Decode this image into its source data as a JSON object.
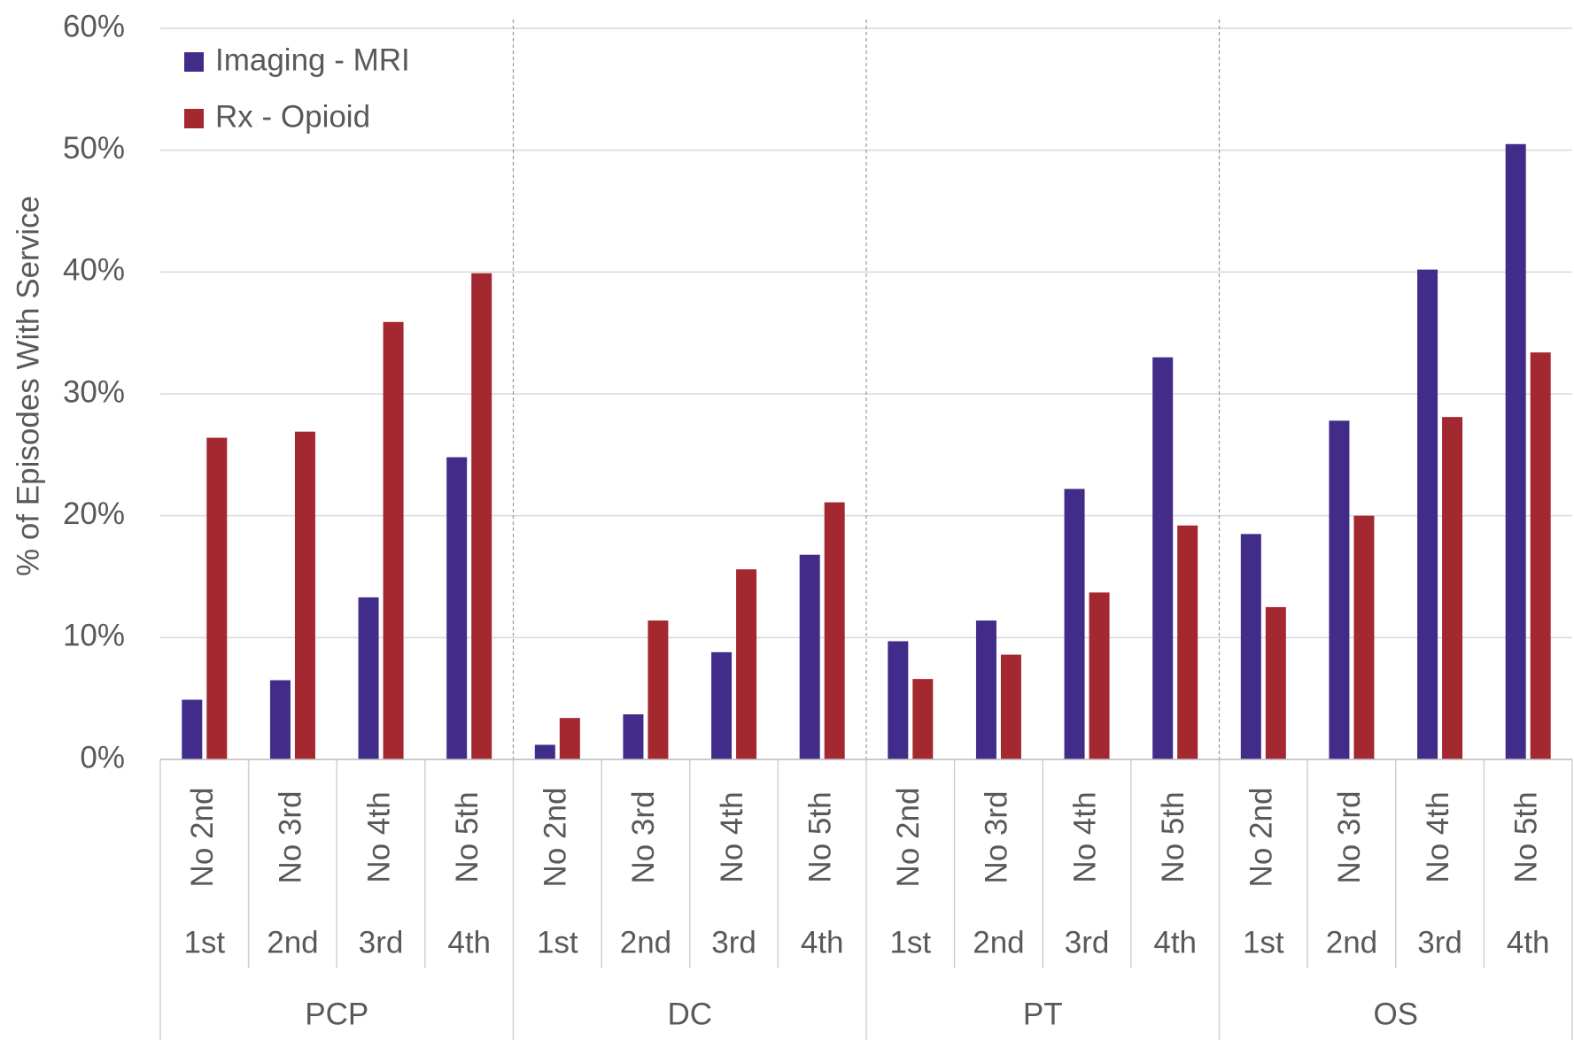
{
  "chart_data": {
    "type": "bar",
    "y_label": "% of Episodes With Service",
    "categories": [
      "No 2nd",
      "No 3rd",
      "No 4th",
      "No 5th",
      "No 2nd",
      "No 3rd",
      "No 4th",
      "No 5th",
      "No 2nd",
      "No 3rd",
      "No 4th",
      "No 5th",
      "No 2nd",
      "No 3rd",
      "No 4th",
      "No 5th"
    ],
    "subcategories": [
      "1st",
      "2nd",
      "3rd",
      "4th",
      "1st",
      "2nd",
      "3rd",
      "4th",
      "1st",
      "2nd",
      "3rd",
      "4th",
      "1st",
      "2nd",
      "3rd",
      "4th"
    ],
    "groups": [
      "PCP",
      "DC",
      "PT",
      "OS"
    ],
    "series": [
      {
        "name": "Imaging - MRI",
        "color": "#422c8a",
        "values": [
          4.9,
          6.5,
          13.3,
          24.8,
          1.2,
          3.7,
          8.8,
          16.8,
          9.7,
          11.4,
          22.2,
          33.0,
          18.5,
          27.8,
          40.2,
          50.5
        ]
      },
      {
        "name": "Rx - Opioid",
        "color": "#a3282f",
        "values": [
          26.4,
          26.9,
          35.9,
          39.9,
          3.4,
          11.4,
          15.6,
          21.1,
          6.6,
          8.6,
          13.7,
          19.2,
          12.5,
          20.0,
          28.1,
          33.4
        ]
      }
    ],
    "ylim": [
      0,
      60
    ],
    "yticks": [
      {
        "value": 0,
        "label": "0%"
      },
      {
        "value": 10,
        "label": "10%"
      },
      {
        "value": 20,
        "label": "20%"
      },
      {
        "value": 30,
        "label": "30%"
      },
      {
        "value": 40,
        "label": "40%"
      },
      {
        "value": 50,
        "label": "50%"
      },
      {
        "value": 60,
        "label": "60%"
      }
    ],
    "grid": true,
    "legend": "top-left"
  }
}
